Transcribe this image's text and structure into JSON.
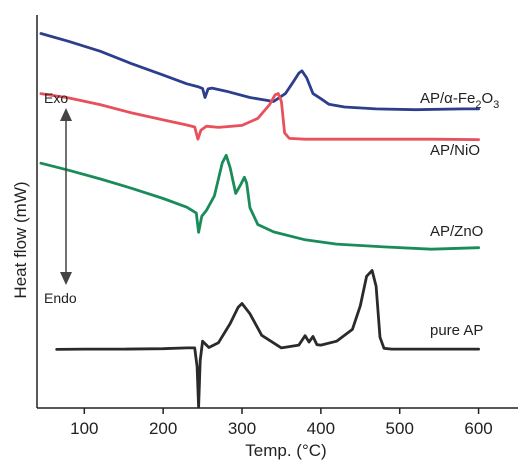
{
  "chart_data": {
    "type": "line",
    "xlabel": "Temp. (°C)",
    "ylabel": "Heat flow (mW)",
    "xlim": [
      40,
      650
    ],
    "ylim": [
      0,
      1
    ],
    "x_ticks": [
      100,
      200,
      300,
      400,
      500,
      600
    ],
    "y_ticks_shown": false,
    "grid": false,
    "annotations": {
      "top": "Exo",
      "bottom": "Endo"
    },
    "series": [
      {
        "name": "AP/α-Fe2O3",
        "label_main": "AP/α-Fe",
        "label_sub": "2",
        "label_mid": "O",
        "label_sub2": "3",
        "color": "#2c3e8c",
        "x": [
          45,
          80,
          120,
          160,
          200,
          230,
          245,
          250,
          253,
          257,
          262,
          280,
          310,
          340,
          355,
          365,
          372,
          376,
          382,
          390,
          400,
          410,
          430,
          470,
          520,
          580,
          600
        ],
        "y": [
          0.953,
          0.933,
          0.908,
          0.876,
          0.847,
          0.825,
          0.817,
          0.813,
          0.79,
          0.812,
          0.814,
          0.806,
          0.79,
          0.78,
          0.8,
          0.83,
          0.852,
          0.858,
          0.84,
          0.8,
          0.787,
          0.773,
          0.766,
          0.761,
          0.759,
          0.761,
          0.761
        ]
      },
      {
        "name": "AP/NiO",
        "color": "#e8505b",
        "x": [
          45,
          80,
          120,
          160,
          200,
          230,
          240,
          244,
          248,
          255,
          270,
          300,
          320,
          335,
          342,
          346,
          350,
          354,
          360,
          380,
          420,
          480,
          540,
          600
        ],
        "y": [
          0.8,
          0.789,
          0.772,
          0.751,
          0.733,
          0.72,
          0.715,
          0.684,
          0.707,
          0.717,
          0.714,
          0.719,
          0.737,
          0.772,
          0.797,
          0.8,
          0.78,
          0.7,
          0.686,
          0.684,
          0.684,
          0.684,
          0.684,
          0.683
        ]
      },
      {
        "name": "AP/ZnO",
        "color": "#1a8c5a",
        "x": [
          45,
          80,
          120,
          160,
          200,
          230,
          242,
          245,
          249,
          255,
          265,
          275,
          280,
          285,
          292,
          298,
          303,
          306,
          310,
          320,
          340,
          380,
          420,
          480,
          540,
          600
        ],
        "y": [
          0.623,
          0.605,
          0.583,
          0.559,
          0.533,
          0.511,
          0.496,
          0.447,
          0.488,
          0.503,
          0.54,
          0.624,
          0.643,
          0.611,
          0.546,
          0.567,
          0.587,
          0.572,
          0.51,
          0.467,
          0.448,
          0.428,
          0.417,
          0.41,
          0.404,
          0.408
        ]
      },
      {
        "name": "pure AP",
        "color": "#2a2a2a",
        "x": [
          65,
          100,
          150,
          200,
          230,
          240,
          243,
          245,
          247,
          250,
          258,
          270,
          285,
          295,
          300,
          310,
          325,
          350,
          372,
          380,
          385,
          390,
          395,
          400,
          420,
          440,
          450,
          458,
          465,
          470,
          475,
          480,
          490,
          520,
          560,
          600
        ],
        "y": [
          0.149,
          0.15,
          0.15,
          0.151,
          0.153,
          0.153,
          0.105,
          0.002,
          0.121,
          0.17,
          0.154,
          0.166,
          0.215,
          0.256,
          0.266,
          0.24,
          0.185,
          0.153,
          0.16,
          0.184,
          0.168,
          0.182,
          0.161,
          0.16,
          0.17,
          0.2,
          0.26,
          0.335,
          0.35,
          0.31,
          0.18,
          0.152,
          0.15,
          0.15,
          0.15,
          0.15
        ]
      }
    ]
  }
}
